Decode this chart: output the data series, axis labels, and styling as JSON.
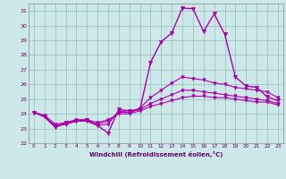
{
  "xlabel": "Windchill (Refroidissement éolien,°C)",
  "xlim": [
    -0.5,
    23.5
  ],
  "ylim": [
    22,
    31.5
  ],
  "yticks": [
    22,
    23,
    24,
    25,
    26,
    27,
    28,
    29,
    30,
    31
  ],
  "xticks": [
    0,
    1,
    2,
    3,
    4,
    5,
    6,
    7,
    8,
    9,
    10,
    11,
    12,
    13,
    14,
    15,
    16,
    17,
    18,
    19,
    20,
    21,
    22,
    23
  ],
  "background_color": "#cce8e8",
  "line_color": "#aa00aa",
  "grid_color": "#99bbbb",
  "series": [
    [
      24.1,
      23.8,
      23.1,
      23.4,
      23.5,
      23.6,
      23.2,
      22.7,
      24.3,
      24.2,
      24.3,
      27.5,
      28.9,
      29.5,
      31.2,
      31.15,
      29.6,
      30.8,
      29.4,
      26.5,
      25.9,
      25.8,
      25.15,
      24.9
    ],
    [
      24.1,
      23.8,
      23.1,
      23.3,
      23.5,
      23.5,
      23.2,
      23.3,
      24.2,
      24.1,
      24.4,
      25.1,
      25.6,
      26.1,
      26.5,
      26.4,
      26.3,
      26.1,
      26.0,
      25.8,
      25.7,
      25.6,
      25.5,
      25.1
    ],
    [
      24.1,
      23.8,
      23.2,
      23.3,
      23.5,
      23.5,
      23.3,
      23.5,
      24.1,
      24.1,
      24.3,
      24.7,
      25.0,
      25.3,
      25.6,
      25.6,
      25.5,
      25.4,
      25.3,
      25.2,
      25.1,
      25.0,
      24.9,
      24.7
    ],
    [
      24.1,
      23.9,
      23.3,
      23.4,
      23.6,
      23.6,
      23.4,
      23.6,
      24.0,
      24.0,
      24.2,
      24.5,
      24.7,
      24.9,
      25.1,
      25.2,
      25.2,
      25.1,
      25.1,
      25.0,
      24.9,
      24.8,
      24.8,
      24.6
    ]
  ]
}
